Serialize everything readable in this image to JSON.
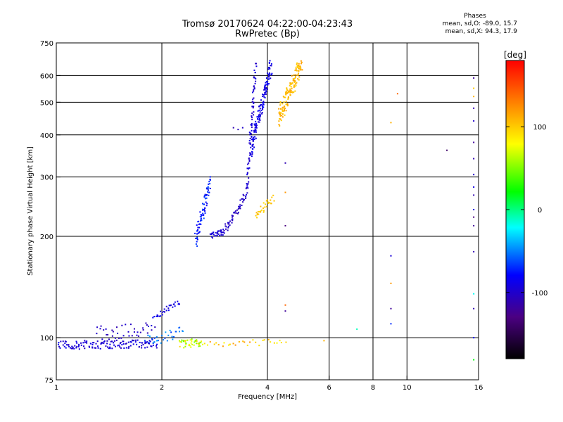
{
  "header": {
    "title_line1": "Tromsø 20170624 04:22:00-04:23:43",
    "title_line2": "RwPretec (Bp)"
  },
  "phases": {
    "heading": "Phases",
    "line_o": "mean, sd,O: -89.0, 15.7",
    "line_x": "mean, sd,X:  94.3, 17.9"
  },
  "colorbar": {
    "unit": "[deg]",
    "ticks": [
      {
        "label": "100",
        "value": 100
      },
      {
        "label": "0",
        "value": 0
      },
      {
        "label": "-100",
        "value": -100
      }
    ],
    "range": [
      -180,
      180
    ],
    "colors": [
      "#000000",
      "#4b0082",
      "#0000ff",
      "#00ffff",
      "#00ff00",
      "#ffff00",
      "#ff8000",
      "#ff0000"
    ]
  },
  "chart_data": {
    "type": "scatter",
    "title": "Tromsø 20170624 04:22:00-04:23:43",
    "subtitle": "RwPretec (Bp)",
    "xlabel": "Frequency [MHz]",
    "ylabel": "Stationary phase Virtual Height [km]",
    "x_scale": "log",
    "y_scale": "log",
    "xlim": [
      1,
      16
    ],
    "ylim": [
      75,
      750
    ],
    "x_ticks": [
      {
        "label": "1",
        "value": 1
      },
      {
        "label": "2",
        "value": 2
      },
      {
        "label": "4",
        "value": 4
      },
      {
        "label": "6",
        "value": 6
      },
      {
        "label": "8",
        "value": 8
      },
      {
        "label": "10",
        "value": 10
      },
      {
        "label": "16",
        "value": 16
      }
    ],
    "x_gridlines": [
      2,
      4,
      6,
      8,
      10
    ],
    "y_ticks": [
      {
        "label": "75",
        "value": 75
      },
      {
        "label": "100",
        "value": 100
      },
      {
        "label": "200",
        "value": 200
      },
      {
        "label": "300",
        "value": 300
      },
      {
        "label": "400",
        "value": 400
      },
      {
        "label": "500",
        "value": 500
      },
      {
        "label": "600",
        "value": 600
      },
      {
        "label": "750",
        "value": 750
      }
    ],
    "y_gridlines": [
      100,
      200,
      300,
      400,
      500,
      600
    ],
    "grid": true,
    "segments": [
      {
        "f0": 1.0,
        "f1": 1.95,
        "h0": 95,
        "h1": 96,
        "jitter": 0.03,
        "p0": -105,
        "p1": -85,
        "n": 140
      },
      {
        "f0": 1.3,
        "f1": 1.9,
        "h0": 103,
        "h1": 106,
        "jitter": 0.05,
        "p0": -110,
        "p1": -95,
        "n": 40
      },
      {
        "f0": 1.8,
        "f1": 2.3,
        "h0": 98,
        "h1": 104,
        "jitter": 0.04,
        "p0": -70,
        "p1": -40,
        "n": 30
      },
      {
        "f0": 1.9,
        "f1": 2.25,
        "h0": 115,
        "h1": 128,
        "jitter": 0.02,
        "p0": -100,
        "p1": -80,
        "n": 30
      },
      {
        "f0": 2.25,
        "f1": 2.6,
        "h0": 96,
        "h1": 97,
        "jitter": 0.03,
        "p0": 40,
        "p1": 100,
        "n": 40
      },
      {
        "f0": 2.6,
        "f1": 4.5,
        "h0": 96,
        "h1": 97,
        "jitter": 0.02,
        "p0": 70,
        "p1": 130,
        "n": 30
      },
      {
        "f0": 2.5,
        "f1": 2.75,
        "h0": 195,
        "h1": 290,
        "jitter": 0.05,
        "p0": -90,
        "p1": -60,
        "n": 80
      },
      {
        "f0": 2.75,
        "f1": 3.0,
        "h0": 200,
        "h1": 206,
        "jitter": 0.02,
        "p0": -100,
        "p1": -90,
        "n": 30
      },
      {
        "f0": 3.0,
        "f1": 3.5,
        "h0": 206,
        "h1": 270,
        "jitter": 0.03,
        "p0": -110,
        "p1": -95,
        "n": 50
      },
      {
        "f0": 3.5,
        "f1": 3.7,
        "h0": 270,
        "h1": 650,
        "jitter": 0.04,
        "p0": -105,
        "p1": -90,
        "n": 80
      },
      {
        "f0": 3.6,
        "f1": 4.1,
        "h0": 360,
        "h1": 650,
        "jitter": 0.06,
        "p0": -100,
        "p1": -80,
        "n": 140
      },
      {
        "f0": 3.7,
        "f1": 4.15,
        "h0": 230,
        "h1": 260,
        "jitter": 0.03,
        "p0": 90,
        "p1": 110,
        "n": 30
      },
      {
        "f0": 4.3,
        "f1": 5.0,
        "h0": 450,
        "h1": 650,
        "jitter": 0.07,
        "p0": 95,
        "p1": 120,
        "n": 140
      }
    ],
    "points": [
      {
        "x": 3.2,
        "y": 420,
        "p": -110
      },
      {
        "x": 3.3,
        "y": 415,
        "p": -105
      },
      {
        "x": 3.4,
        "y": 420,
        "p": -100
      },
      {
        "x": 4.5,
        "y": 330,
        "p": -110
      },
      {
        "x": 4.5,
        "y": 270,
        "p": 120
      },
      {
        "x": 4.5,
        "y": 215,
        "p": -130
      },
      {
        "x": 4.5,
        "y": 125,
        "p": 140
      },
      {
        "x": 4.5,
        "y": 120,
        "p": -120
      },
      {
        "x": 9.0,
        "y": 435,
        "p": 110
      },
      {
        "x": 9.0,
        "y": 175,
        "p": -95
      },
      {
        "x": 9.0,
        "y": 145,
        "p": 120
      },
      {
        "x": 9.0,
        "y": 122,
        "p": -120
      },
      {
        "x": 9.0,
        "y": 110,
        "p": -70
      },
      {
        "x": 9.4,
        "y": 530,
        "p": 140
      },
      {
        "x": 13.0,
        "y": 360,
        "p": -140
      },
      {
        "x": 7.2,
        "y": 106,
        "p": -10
      },
      {
        "x": 5.8,
        "y": 98,
        "p": 110
      },
      {
        "x": 15.5,
        "y": 590,
        "p": -120
      },
      {
        "x": 15.5,
        "y": 550,
        "p": 100
      },
      {
        "x": 15.5,
        "y": 520,
        "p": 110
      },
      {
        "x": 15.5,
        "y": 480,
        "p": -110
      },
      {
        "x": 15.5,
        "y": 440,
        "p": -100
      },
      {
        "x": 15.5,
        "y": 380,
        "p": -120
      },
      {
        "x": 15.5,
        "y": 340,
        "p": -110
      },
      {
        "x": 15.5,
        "y": 305,
        "p": -100
      },
      {
        "x": 15.5,
        "y": 280,
        "p": -90
      },
      {
        "x": 15.5,
        "y": 265,
        "p": -110
      },
      {
        "x": 15.5,
        "y": 240,
        "p": -90
      },
      {
        "x": 15.5,
        "y": 228,
        "p": -130
      },
      {
        "x": 15.5,
        "y": 215,
        "p": -120
      },
      {
        "x": 15.5,
        "y": 180,
        "p": -110
      },
      {
        "x": 15.5,
        "y": 135,
        "p": -20
      },
      {
        "x": 15.5,
        "y": 122,
        "p": -110
      },
      {
        "x": 15.5,
        "y": 100,
        "p": -80
      },
      {
        "x": 15.5,
        "y": 86,
        "p": 20
      }
    ]
  }
}
